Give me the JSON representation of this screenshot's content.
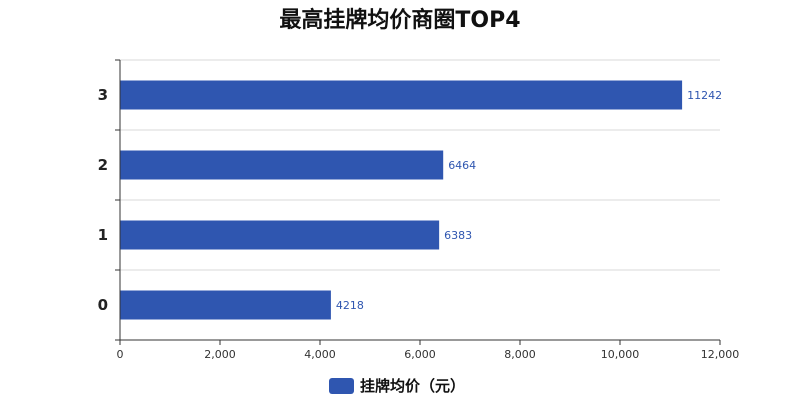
{
  "chart_data": {
    "type": "bar",
    "orientation": "horizontal",
    "title": "最高挂牌均价商圈TOP4",
    "categories": [
      "0",
      "1",
      "2",
      "3"
    ],
    "series": [
      {
        "name": "挂牌均价（元）",
        "values": [
          4218,
          6383,
          6464,
          11242
        ]
      }
    ],
    "xlim": [
      0,
      12000
    ],
    "x_ticks": [
      0,
      2000,
      4000,
      6000,
      8000,
      10000,
      12000
    ],
    "x_tick_labels": [
      "0",
      "2,000",
      "4,000",
      "6,000",
      "8,000",
      "10,000",
      "12,000"
    ],
    "xlabel": "",
    "ylabel": "",
    "grid": "horizontal category separators",
    "legend_position": "bottom",
    "colors": {
      "bar": "#2f56b0",
      "data_label": "#2f56b0",
      "grid": "#d9d9d9",
      "axis": "#333333"
    }
  }
}
